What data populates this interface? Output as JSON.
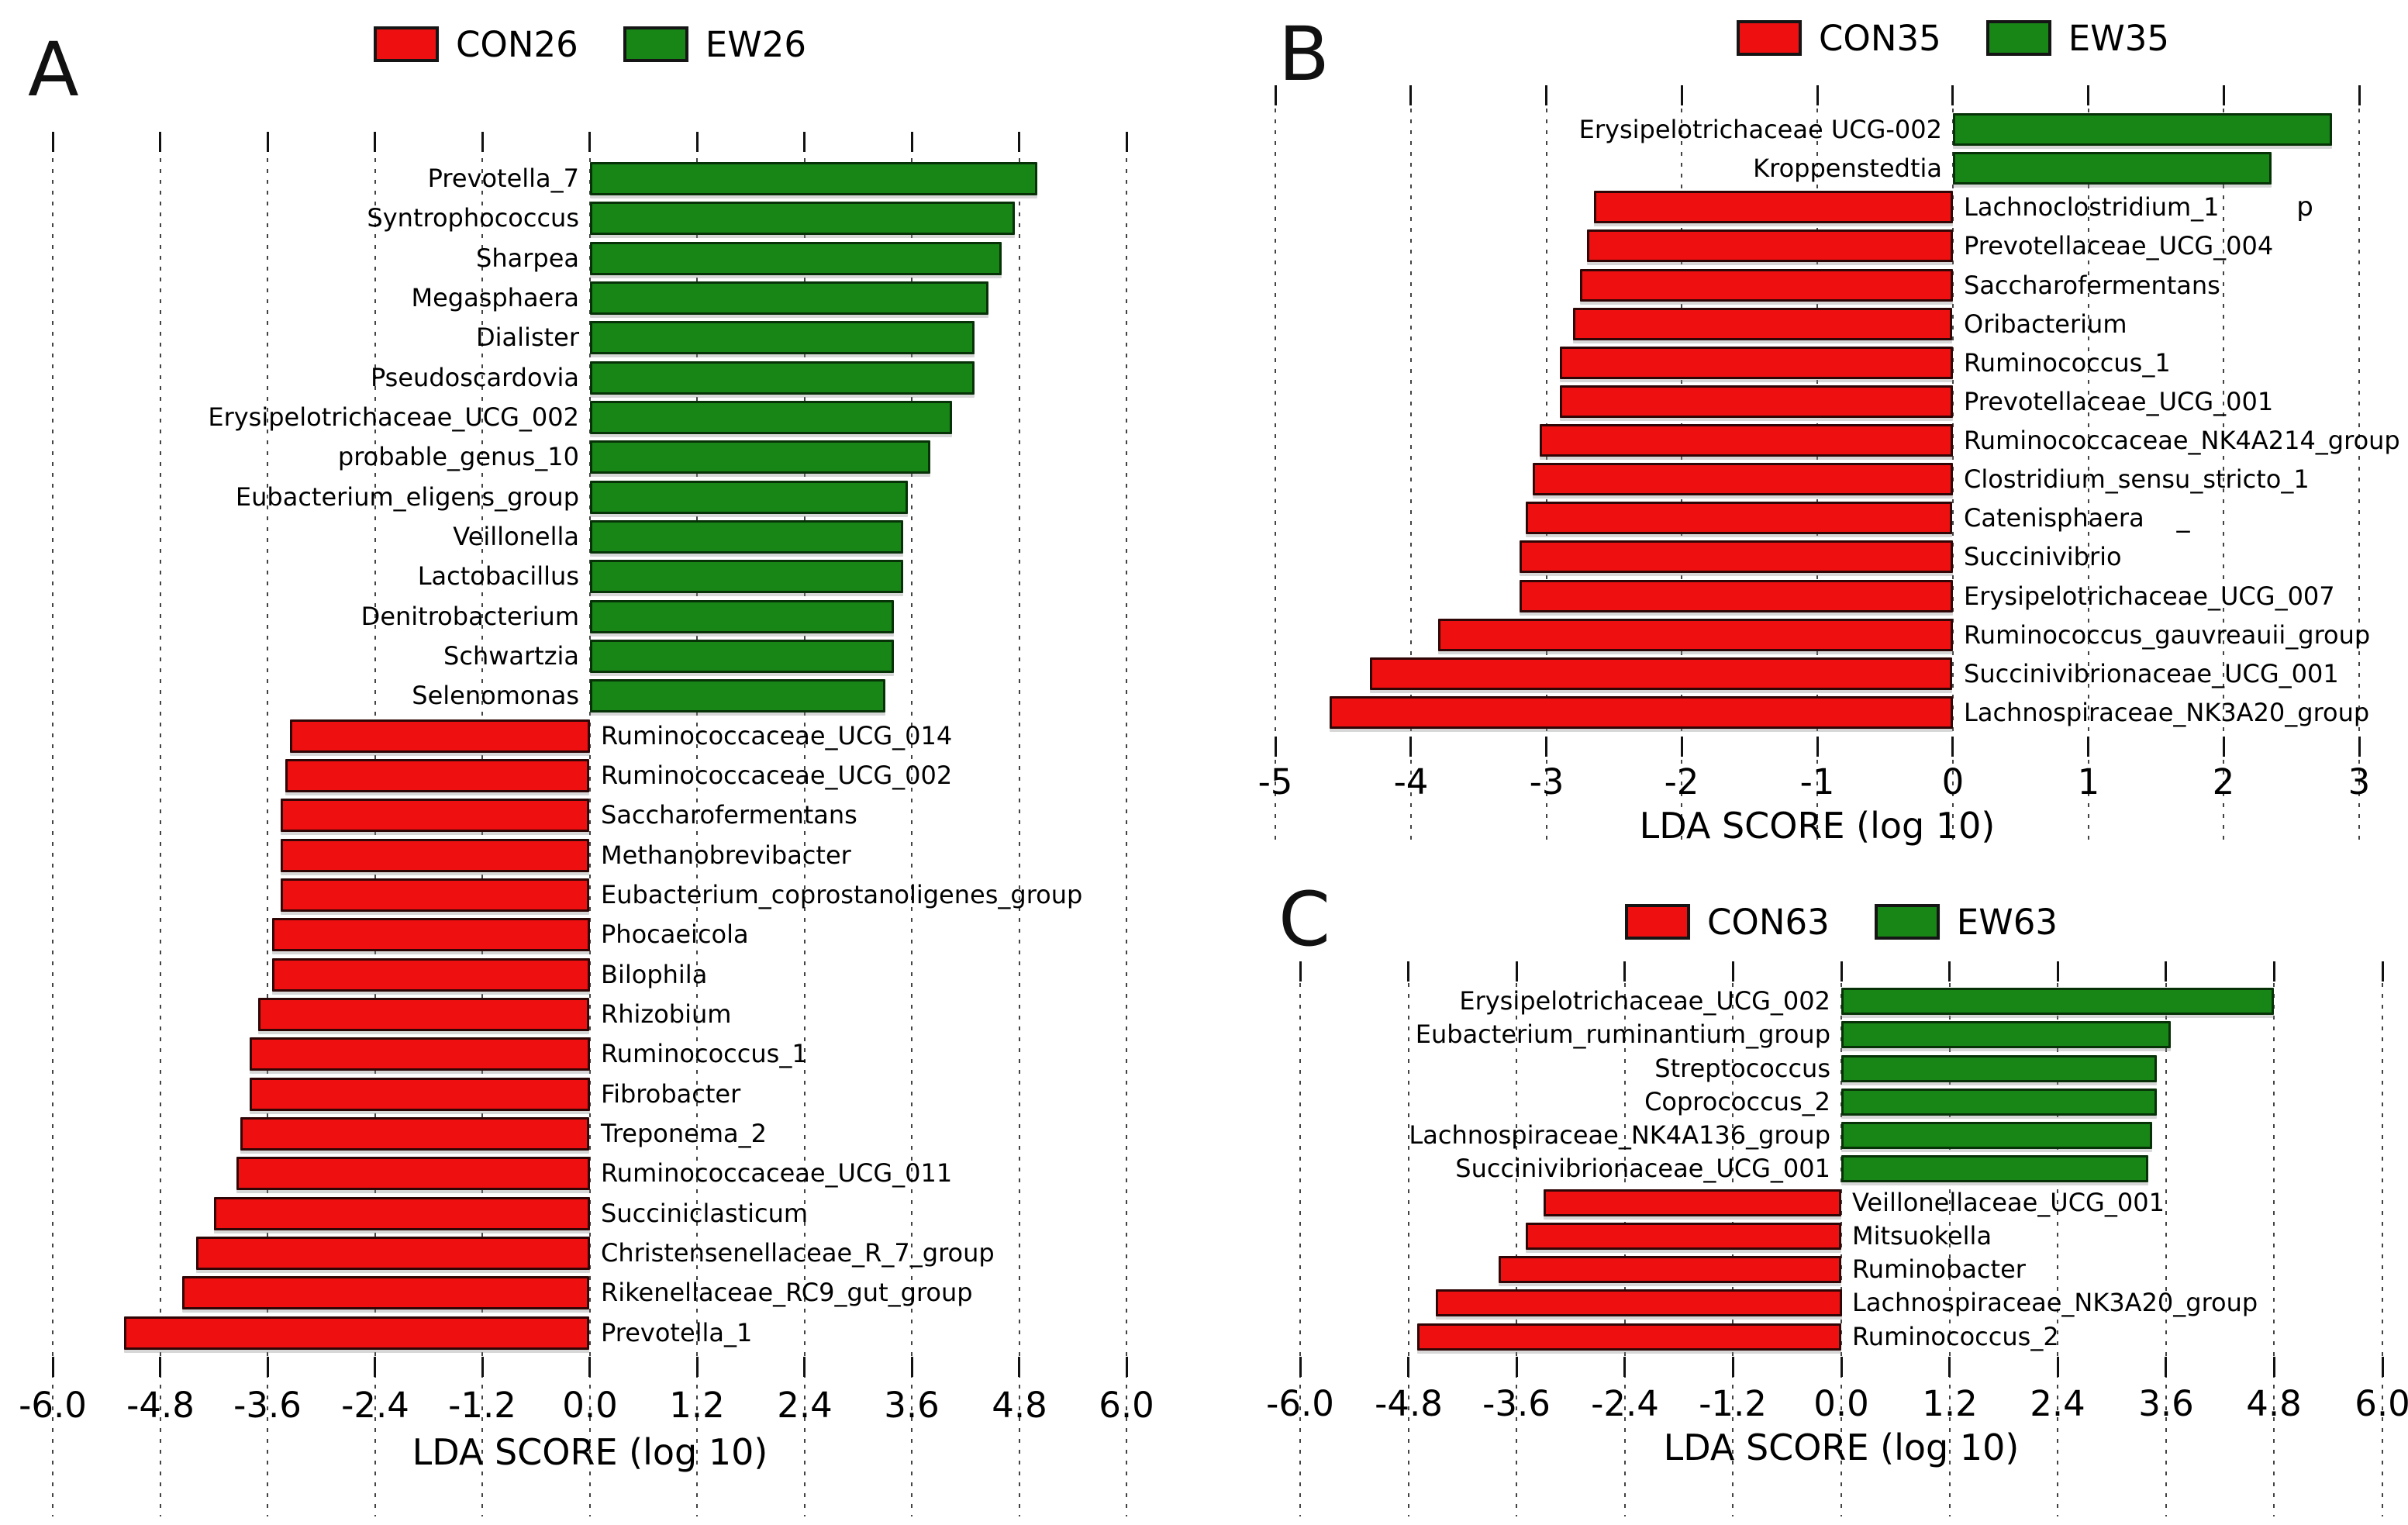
{
  "figure": {
    "background": "#ffffff",
    "colors": {
      "red": "#ee1010",
      "green": "#178617",
      "red_edge": "#2f0505",
      "green_edge": "#073207",
      "grid": "#444444",
      "tick": "#111111",
      "text": "#000000"
    }
  },
  "chart_data": [
    {
      "id": "A",
      "type": "bar",
      "orientation": "horizontal",
      "panel_label": "A",
      "title": "",
      "xlabel": "LDA SCORE (log 10)",
      "xlim": [
        -6.0,
        6.0
      ],
      "xticks": [
        "-6.0",
        "-4.8",
        "-3.6",
        "-2.4",
        "-1.2",
        "0.0",
        "1.2",
        "2.4",
        "3.6",
        "4.8",
        "6.0"
      ],
      "grid": "dotted-vertical",
      "legend_position": "top-center",
      "legend": [
        {
          "label": "CON26",
          "color_key": "red"
        },
        {
          "label": "EW26",
          "color_key": "green"
        }
      ],
      "bars": [
        {
          "taxon": "Prevotella_7",
          "group": "EW26",
          "value": 5.0
        },
        {
          "taxon": "Syntrophococcus",
          "group": "EW26",
          "value": 4.75
        },
        {
          "taxon": "Sharpea",
          "group": "EW26",
          "value": 4.6
        },
        {
          "taxon": "Megasphaera",
          "group": "EW26",
          "value": 4.45
        },
        {
          "taxon": "Dialister",
          "group": "EW26",
          "value": 4.3
        },
        {
          "taxon": "Pseudoscardovia",
          "group": "EW26",
          "value": 4.3
        },
        {
          "taxon": "Erysipelotrichaceae_UCG_002",
          "group": "EW26",
          "value": 4.05
        },
        {
          "taxon": "probable_genus_10",
          "group": "EW26",
          "value": 3.8
        },
        {
          "taxon": "Eubacterium_eligens_group",
          "group": "EW26",
          "value": 3.55
        },
        {
          "taxon": "Veillonella",
          "group": "EW26",
          "value": 3.5
        },
        {
          "taxon": "Lactobacillus",
          "group": "EW26",
          "value": 3.5
        },
        {
          "taxon": "Denitrobacterium",
          "group": "EW26",
          "value": 3.4
        },
        {
          "taxon": "Schwartzia",
          "group": "EW26",
          "value": 3.4
        },
        {
          "taxon": "Selenomonas",
          "group": "EW26",
          "value": 3.3
        },
        {
          "taxon": "Ruminococcaceae_UCG_014",
          "group": "CON26",
          "value": -3.35
        },
        {
          "taxon": "Ruminococcaceae_UCG_002",
          "group": "CON26",
          "value": -3.4
        },
        {
          "taxon": "Saccharofermentans",
          "group": "CON26",
          "value": -3.45
        },
        {
          "taxon": "Methanobrevibacter",
          "group": "CON26",
          "value": -3.45
        },
        {
          "taxon": "Eubacterium_coprostanoligenes_group",
          "group": "CON26",
          "value": -3.45
        },
        {
          "taxon": "Phocaeicola",
          "group": "CON26",
          "value": -3.55
        },
        {
          "taxon": "Bilophila",
          "group": "CON26",
          "value": -3.55
        },
        {
          "taxon": "Rhizobium",
          "group": "CON26",
          "value": -3.7
        },
        {
          "taxon": "Ruminococcus_1",
          "group": "CON26",
          "value": -3.8
        },
        {
          "taxon": "Fibrobacter",
          "group": "CON26",
          "value": -3.8
        },
        {
          "taxon": "Treponema_2",
          "group": "CON26",
          "value": -3.9
        },
        {
          "taxon": "Ruminococcaceae_UCG_011",
          "group": "CON26",
          "value": -3.95
        },
        {
          "taxon": "Succiniclasticum",
          "group": "CON26",
          "value": -4.2
        },
        {
          "taxon": "Christensenellaceae_R_7_group",
          "group": "CON26",
          "value": -4.4
        },
        {
          "taxon": "Rikenellaceae_RC9_gut_group",
          "group": "CON26",
          "value": -4.55
        },
        {
          "taxon": "Prevotella_1",
          "group": "CON26",
          "value": -5.2
        }
      ],
      "annotations": []
    },
    {
      "id": "B",
      "type": "bar",
      "orientation": "horizontal",
      "panel_label": "B",
      "title": "",
      "xlabel": "LDA SCORE (log 10)",
      "xlim": [
        -5,
        3
      ],
      "xticks": [
        "-5",
        "-4",
        "-3",
        "-2",
        "-1",
        "0",
        "1",
        "2",
        "3"
      ],
      "grid": "dotted-vertical",
      "legend_position": "top-center",
      "legend": [
        {
          "label": "CON35",
          "color_key": "red"
        },
        {
          "label": "EW35",
          "color_key": "green"
        }
      ],
      "bars": [
        {
          "taxon": "Erysipelotrichaceae UCG-002",
          "group": "EW35",
          "value": 2.8
        },
        {
          "taxon": "Kroppenstedtia",
          "group": "EW35",
          "value": 2.35
        },
        {
          "taxon": "Lachnoclostridium_1",
          "group": "CON35",
          "value": -2.65
        },
        {
          "taxon": "Prevotellaceae_UCG_004",
          "group": "CON35",
          "value": -2.7
        },
        {
          "taxon": "Saccharofermentans",
          "group": "CON35",
          "value": -2.75
        },
        {
          "taxon": "Oribacterium",
          "group": "CON35",
          "value": -2.8
        },
        {
          "taxon": "Ruminococcus_1",
          "group": "CON35",
          "value": -2.9
        },
        {
          "taxon": "Prevotellaceae_UCG_001",
          "group": "CON35",
          "value": -2.9
        },
        {
          "taxon": "Ruminococcaceae_NK4A214_group",
          "group": "CON35",
          "value": -3.05
        },
        {
          "taxon": "Clostridium_sensu_stricto_1",
          "group": "CON35",
          "value": -3.1
        },
        {
          "taxon": "Catenisphaera",
          "group": "CON35",
          "value": -3.15
        },
        {
          "taxon": "Succinivibrio",
          "group": "CON35",
          "value": -3.2
        },
        {
          "taxon": "Erysipelotrichaceae_UCG_007",
          "group": "CON35",
          "value": -3.2
        },
        {
          "taxon": "Ruminococcus_gauvreauii_group",
          "group": "CON35",
          "value": -3.8
        },
        {
          "taxon": "Succinivibrionaceae_UCG_001",
          "group": "CON35",
          "value": -4.3
        },
        {
          "taxon": "Lachnospiraceae_NK3A20_group",
          "group": "CON35",
          "value": -4.6
        }
      ],
      "annotations": [
        {
          "text": "p",
          "x": 2.6,
          "row": 2
        },
        {
          "text": "_",
          "x": 1.7,
          "row": 10
        }
      ]
    },
    {
      "id": "C",
      "type": "bar",
      "orientation": "horizontal",
      "panel_label": "C",
      "title": "",
      "xlabel": "LDA SCORE (log 10)",
      "xlim": [
        -6.0,
        6.0
      ],
      "xticks": [
        "-6.0",
        "-4.8",
        "-3.6",
        "-2.4",
        "-1.2",
        "0.0",
        "1.2",
        "2.4",
        "3.6",
        "4.8",
        "6.0"
      ],
      "grid": "dotted-vertical",
      "legend_position": "top-center",
      "legend": [
        {
          "label": "CON63",
          "color_key": "red"
        },
        {
          "label": "EW63",
          "color_key": "green"
        }
      ],
      "bars": [
        {
          "taxon": "Erysipelotrichaceae_UCG_002",
          "group": "EW63",
          "value": 4.8
        },
        {
          "taxon": "Eubacterium_ruminantium_group",
          "group": "EW63",
          "value": 3.65
        },
        {
          "taxon": "Streptococcus",
          "group": "EW63",
          "value": 3.5
        },
        {
          "taxon": "Coprococcus_2",
          "group": "EW63",
          "value": 3.5
        },
        {
          "taxon": "Lachnospiraceae_NK4A136_group",
          "group": "EW63",
          "value": 3.45
        },
        {
          "taxon": "Succinivibrionaceae_UCG_001",
          "group": "EW63",
          "value": 3.4
        },
        {
          "taxon": "Veillonellaceae_UCG_001",
          "group": "CON63",
          "value": -3.3
        },
        {
          "taxon": "Mitsuokella",
          "group": "CON63",
          "value": -3.5
        },
        {
          "taxon": "Ruminobacter",
          "group": "CON63",
          "value": -3.8
        },
        {
          "taxon": "Lachnospiraceae_NK3A20_group",
          "group": "CON63",
          "value": -4.5
        },
        {
          "taxon": "Ruminococcus_2",
          "group": "CON63",
          "value": -4.7
        }
      ],
      "annotations": []
    }
  ]
}
